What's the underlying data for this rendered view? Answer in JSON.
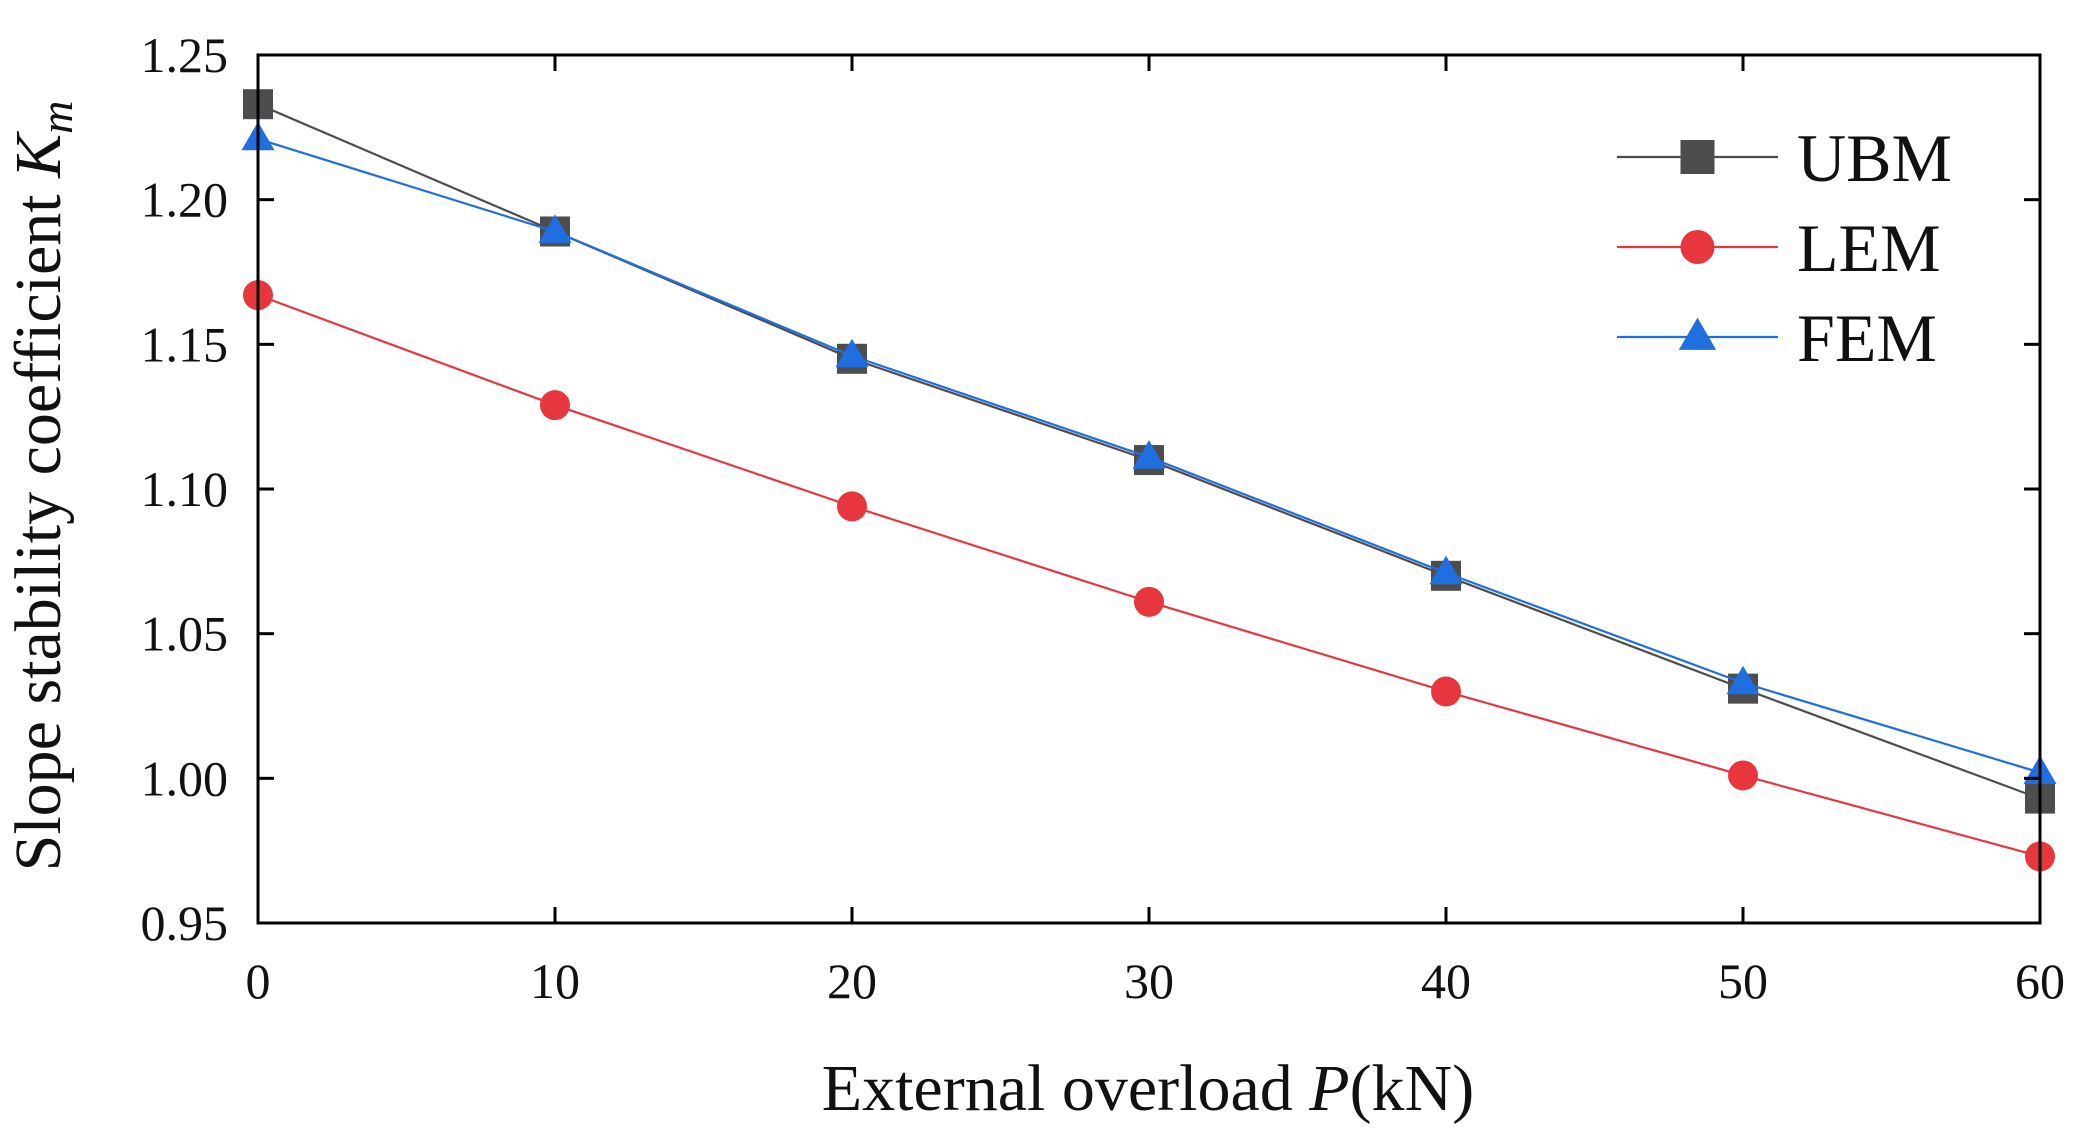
{
  "chart_data": {
    "type": "line",
    "title": "",
    "xlabel_prefix": "External overload ",
    "xlabel_var": "P",
    "xlabel_suffix": "(kN)",
    "ylabel_prefix": "Slope stability coefficient ",
    "ylabel_var": "K",
    "ylabel_sub": "m",
    "x": [
      0,
      10,
      20,
      30,
      40,
      50,
      60
    ],
    "xlim": [
      0,
      60
    ],
    "ylim": [
      0.95,
      1.25
    ],
    "xticks": [
      0,
      10,
      20,
      30,
      40,
      50,
      60
    ],
    "yticks": [
      0.95,
      1.0,
      1.05,
      1.1,
      1.15,
      1.2,
      1.25
    ],
    "xtick_labels": [
      "0",
      "10",
      "20",
      "30",
      "40",
      "50",
      "60"
    ],
    "ytick_labels": [
      "0.95",
      "1.00",
      "1.05",
      "1.10",
      "1.15",
      "1.20",
      "1.25"
    ],
    "grid": false,
    "legend_position": "top-right",
    "series": [
      {
        "name": "UBM",
        "marker": "square",
        "color": "#4d4d4d",
        "values": [
          1.233,
          1.189,
          1.145,
          1.11,
          1.07,
          1.031,
          0.993
        ]
      },
      {
        "name": "LEM",
        "marker": "circle",
        "color": "#e8363f",
        "values": [
          1.167,
          1.129,
          1.094,
          1.061,
          1.03,
          1.001,
          0.973
        ]
      },
      {
        "name": "FEM",
        "marker": "triangle",
        "color": "#1f6fe0",
        "values": [
          1.221,
          1.189,
          1.146,
          1.111,
          1.071,
          1.033,
          1.002
        ]
      }
    ]
  }
}
